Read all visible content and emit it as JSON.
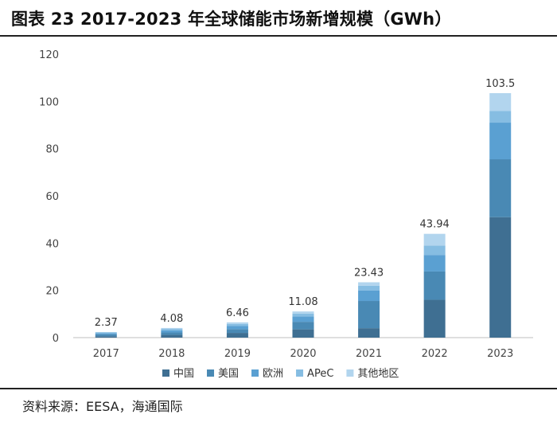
{
  "header": {
    "title": "图表 23 2017-2023 年全球储能市场新增规模（GWh）"
  },
  "footer": {
    "source": "资料来源：EESA，海通国际"
  },
  "chart_data": {
    "type": "bar",
    "stacked": true,
    "title": "图表 23 2017-2023 年全球储能市场新增规模（GWh）",
    "categories": [
      "2017",
      "2018",
      "2019",
      "2020",
      "2021",
      "2022",
      "2023"
    ],
    "totals": [
      "2.37",
      "4.08",
      "6.46",
      "11.08",
      "23.43",
      "43.94",
      "103.5"
    ],
    "series": [
      {
        "name": "中国",
        "color": "#3f6f92",
        "values": [
          0.6,
          1.2,
          2.0,
          3.5,
          4.0,
          16.0,
          51.0
        ]
      },
      {
        "name": "美国",
        "color": "#4989b4",
        "values": [
          0.8,
          1.0,
          1.6,
          3.2,
          11.5,
          12.0,
          24.5
        ]
      },
      {
        "name": "欧洲",
        "color": "#5aa0d2",
        "values": [
          0.5,
          0.9,
          1.3,
          2.3,
          4.5,
          7.0,
          15.5
        ]
      },
      {
        "name": "APeC",
        "color": "#86bde2",
        "values": [
          0.3,
          0.6,
          0.9,
          1.2,
          2.0,
          4.0,
          5.0
        ]
      },
      {
        "name": "其他地区",
        "color": "#b2d5ee",
        "values": [
          0.17,
          0.38,
          0.66,
          0.88,
          1.43,
          4.94,
          7.5
        ]
      }
    ],
    "y_ticks": [
      "0",
      "20",
      "40",
      "60",
      "80",
      "100",
      "120"
    ],
    "ylim": [
      0,
      120
    ],
    "grid": false,
    "legend_position": "bottom"
  }
}
